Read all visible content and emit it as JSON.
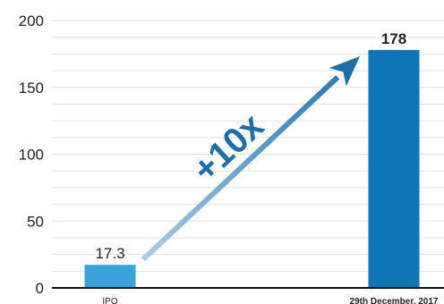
{
  "chart_data": {
    "type": "bar",
    "categories": [
      "IPO",
      "29th December. 2017"
    ],
    "values": [
      17.3,
      178
    ],
    "data_labels": [
      "17.3",
      "178"
    ],
    "title": "",
    "xlabel": "",
    "ylabel": "",
    "ylim": [
      0,
      200
    ],
    "yticks": [
      "0",
      "50",
      "100",
      "150",
      "200"
    ],
    "grid": true,
    "legend": "none",
    "annotation": "+10x",
    "colors": {
      "bar_ipo": "#3ba3dc",
      "bar_latest": "#0f75b4",
      "annotation": "#1f6ea8",
      "grid": "#e1e1e1",
      "axis": "#111111"
    }
  }
}
